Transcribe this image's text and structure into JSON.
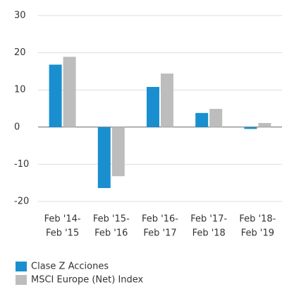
{
  "chart_data": {
    "type": "bar",
    "categories": [
      [
        "Feb '14-",
        "Feb '15"
      ],
      [
        "Feb '15-",
        "Feb '16"
      ],
      [
        "Feb '16-",
        "Feb '17"
      ],
      [
        "Feb '17-",
        "Feb '18"
      ],
      [
        "Feb '18-",
        "Feb '19"
      ]
    ],
    "series": [
      {
        "name": "Clase Z Acciones",
        "color": "#1a8fcf",
        "values": [
          16.8,
          -16.4,
          10.8,
          3.8,
          -0.5
        ]
      },
      {
        "name": "MSCI Europe (Net) Index",
        "color": "#bdbdbd",
        "values": [
          18.9,
          -13.2,
          14.4,
          4.9,
          1.1
        ]
      }
    ],
    "ylim": [
      -20,
      30
    ],
    "yticks": [
      -20,
      -10,
      0,
      10,
      20,
      30
    ],
    "grid": true
  }
}
